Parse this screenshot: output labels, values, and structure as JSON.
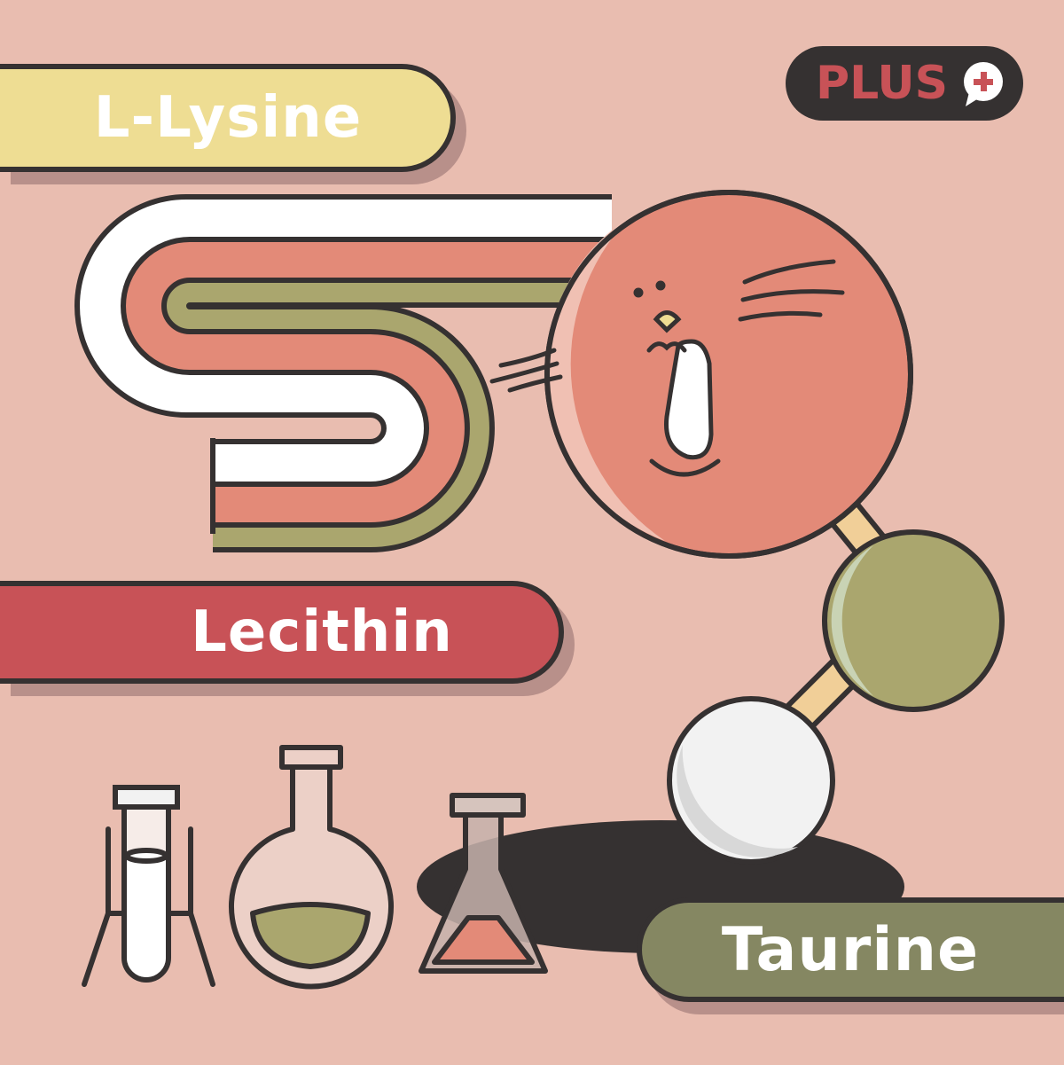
{
  "labels": {
    "lysine": "L-Lysine",
    "lecithin": "Lecithin",
    "taurine": "Taurine"
  },
  "badge": {
    "text": "PLUS",
    "icon": "plus-speech-bubble-icon"
  },
  "colors": {
    "background": "#e9bdb0",
    "outline": "#353131",
    "lysine_pill": "#eedd93",
    "lecithin_pill": "#c85257",
    "taurine_pill": "#858762",
    "salmon": "#e38a78",
    "olive": "#aaa66e",
    "white": "#ffffff",
    "badge_text": "#c85257"
  }
}
